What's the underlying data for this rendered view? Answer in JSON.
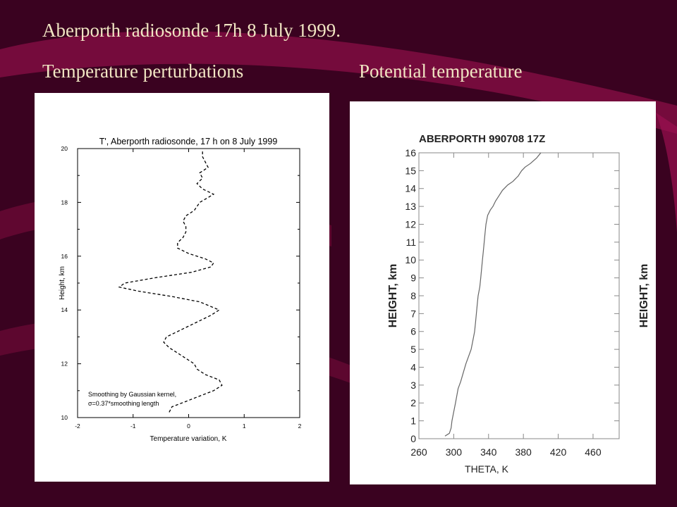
{
  "slide": {
    "title": "Aberporth radiosonde 17h 8 July 1999.",
    "left_caption": "Temperature perturbations",
    "right_caption": "Potential temperature"
  },
  "colors": {
    "background": "#3a0220",
    "swoosh": "#8a0f45",
    "heading_text": "#f1e6c3"
  },
  "chart_data": [
    {
      "type": "line",
      "title": "T', Aberporth radiosonde, 17 h on 8 July 1999",
      "xlabel": "Temperature variation, K",
      "ylabel": "Height, km",
      "xlim": [
        -2,
        2
      ],
      "ylim": [
        10,
        20
      ],
      "xticks": [
        -2,
        -1,
        0,
        1,
        2
      ],
      "yticks": [
        10,
        12,
        14,
        16,
        18,
        20
      ],
      "line_style": "dashed",
      "annotation": [
        "Smoothing by Gaussian kernel,",
        "σ=0.37*smoothing length"
      ],
      "series": [
        {
          "x": [
            -0.35,
            -0.3,
            -0.05,
            0.2,
            0.45,
            0.6,
            0.55,
            0.3,
            0.15,
            0.1,
            -0.05,
            -0.2,
            -0.35,
            -0.45,
            -0.4,
            -0.2,
            0.1,
            0.4,
            0.55,
            0.2,
            -0.3,
            -0.9,
            -1.25,
            -1.15,
            -0.6,
            0.05,
            0.4,
            0.45,
            0.3,
            0.0,
            -0.2,
            -0.2,
            -0.1,
            -0.05,
            -0.05,
            -0.1,
            -0.05,
            0.1,
            0.2,
            0.45,
            0.25,
            0.15,
            0.25,
            0.2,
            0.35,
            0.3,
            0.25,
            0.25
          ],
          "y": [
            10.2,
            10.4,
            10.6,
            10.8,
            11.0,
            11.2,
            11.4,
            11.6,
            11.8,
            12.0,
            12.2,
            12.4,
            12.6,
            12.8,
            13.0,
            13.2,
            13.5,
            13.8,
            14.0,
            14.3,
            14.5,
            14.7,
            14.85,
            15.0,
            15.2,
            15.4,
            15.6,
            15.75,
            15.9,
            16.1,
            16.3,
            16.5,
            16.7,
            16.9,
            17.1,
            17.3,
            17.5,
            17.7,
            18.0,
            18.3,
            18.5,
            18.7,
            18.9,
            19.1,
            19.3,
            19.5,
            19.7,
            19.9
          ]
        }
      ]
    },
    {
      "type": "line",
      "title": "ABERPORTH 990708 17Z",
      "xlabel": "THETA, K",
      "ylabel": "HEIGHT, km",
      "xlim": [
        260,
        490
      ],
      "ylim": [
        0,
        16
      ],
      "xticks": [
        260,
        300,
        340,
        380,
        420,
        460
      ],
      "yticks": [
        0,
        1,
        2,
        3,
        4,
        5,
        6,
        7,
        8,
        9,
        10,
        11,
        12,
        13,
        14,
        15,
        16
      ],
      "line_style": "solid",
      "series": [
        {
          "x": [
            290,
            295,
            297,
            298,
            300,
            302,
            305,
            308,
            311,
            314,
            317,
            320,
            322,
            324,
            325,
            326,
            327,
            328,
            330,
            331,
            332,
            333,
            334,
            335,
            336,
            337,
            339,
            342,
            345,
            348,
            352,
            356,
            360,
            362,
            365,
            368,
            370,
            372,
            374,
            376,
            378,
            382,
            388,
            395,
            400
          ],
          "y": [
            0.15,
            0.3,
            0.6,
            1.0,
            1.5,
            2.0,
            2.8,
            3.2,
            3.7,
            4.2,
            4.6,
            5.0,
            5.5,
            6.0,
            6.5,
            7.0,
            7.5,
            8.0,
            8.5,
            9.0,
            9.5,
            10.0,
            10.5,
            11.0,
            11.5,
            12.0,
            12.5,
            12.8,
            13.0,
            13.3,
            13.6,
            13.9,
            14.1,
            14.2,
            14.3,
            14.4,
            14.5,
            14.6,
            14.7,
            14.85,
            15.0,
            15.2,
            15.4,
            15.7,
            16.0
          ]
        }
      ]
    }
  ]
}
